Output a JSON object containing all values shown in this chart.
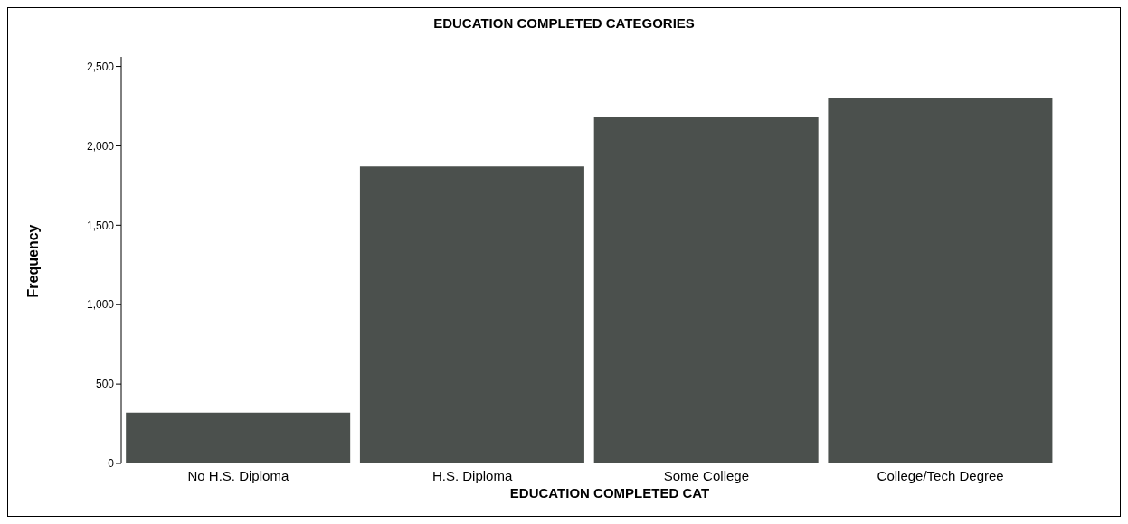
{
  "chart_data": {
    "type": "bar",
    "title": "EDUCATION COMPLETED CATEGORIES",
    "xlabel": "EDUCATION COMPLETED CAT",
    "ylabel": "Frequency",
    "categories": [
      "No H.S. Diploma",
      "H.S. Diploma",
      "Some College",
      "College/Tech Degree"
    ],
    "values": [
      320,
      1870,
      2180,
      2300
    ],
    "color": "#4b504d",
    "ylim": [
      0,
      2560
    ],
    "yticks": [
      {
        "value": 0,
        "label": "0"
      },
      {
        "value": 500,
        "label": "500"
      },
      {
        "value": 1000,
        "label": "1,000"
      },
      {
        "value": 1500,
        "label": "1,500"
      },
      {
        "value": 2000,
        "label": "2,000"
      },
      {
        "value": 2500,
        "label": "2,500"
      }
    ],
    "grid": false,
    "legend": false
  }
}
